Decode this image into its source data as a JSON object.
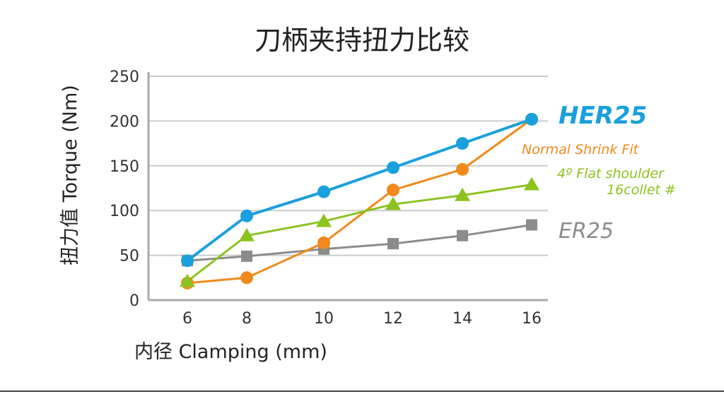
{
  "chart_data": {
    "type": "line",
    "title": "刀柄夹持扭力比较",
    "xlabel": "内径 Clamping (mm)",
    "ylabel": "扭力值 Torque (Nm)",
    "x": [
      6,
      8,
      10,
      12,
      14,
      16
    ],
    "x_tick_labels": [
      "6",
      "8",
      "10",
      "12",
      "14",
      "16"
    ],
    "ylim": [
      0,
      250
    ],
    "y_ticks": [
      0,
      50,
      100,
      150,
      200,
      250
    ],
    "y_tick_labels": [
      "0",
      "50",
      "100",
      "150",
      "200",
      "250"
    ],
    "grid": "horizontal",
    "legend": "inline labels at right end of lines",
    "series": [
      {
        "name": "HER25",
        "color": "#1aa0dc",
        "marker": "circle",
        "values": [
          44,
          94,
          121,
          148,
          175,
          202
        ],
        "label_lines": [
          "HER25"
        ]
      },
      {
        "name": "Normal Shrink Fit",
        "color": "#f08a1c",
        "marker": "circle",
        "values": [
          19,
          25,
          64,
          123,
          146,
          202
        ],
        "label_lines": [
          "Normal Shrink Fit"
        ]
      },
      {
        "name": "4º Flat shoulder 16collet #",
        "color": "#8cc320",
        "marker": "triangle",
        "values": [
          21,
          72,
          88,
          107,
          117,
          129
        ],
        "label_lines": [
          "4º Flat shoulder",
          "16collet #"
        ]
      },
      {
        "name": "ER25",
        "color": "#8c8c8c",
        "marker": "square",
        "values": [
          44,
          49,
          57,
          63,
          72,
          84
        ],
        "label_lines": [
          "ER25"
        ]
      }
    ],
    "axis_color": "#aaaaaa",
    "grid_color": "#cccccc"
  }
}
